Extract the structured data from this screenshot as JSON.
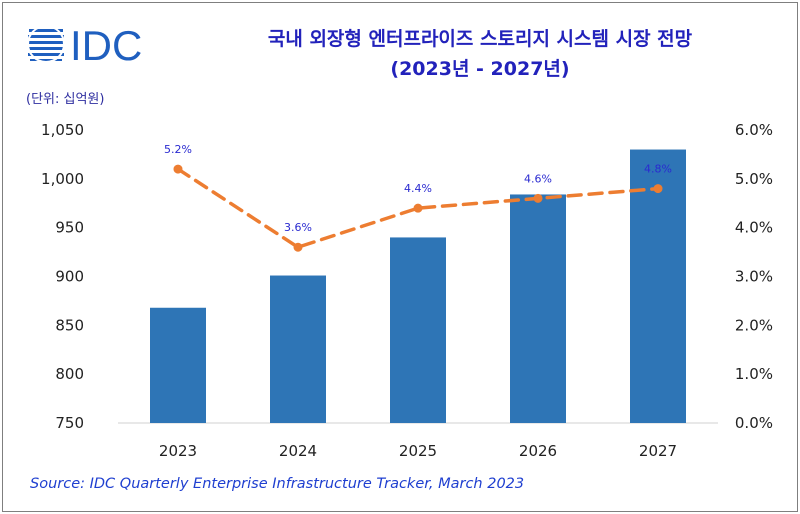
{
  "header": {
    "logo_text": "IDC",
    "title_line1": "국내 외장형 엔터프라이즈 스토리지 시스템 시장 전망",
    "title_line2": "(2023년 - 2027년)"
  },
  "unit_label": "(단위: 십억원)",
  "source": "Source: IDC Quarterly Enterprise Infrastructure Tracker, March 2023",
  "chart_data": {
    "type": "bar",
    "categories": [
      "2023",
      "2024",
      "2025",
      "2026",
      "2027"
    ],
    "series": [
      {
        "type": "bar",
        "axis": "left",
        "values": [
          868,
          901,
          940,
          984,
          1030
        ]
      },
      {
        "type": "line",
        "axis": "right",
        "style": "dashed",
        "values": [
          5.2,
          3.6,
          4.4,
          4.6,
          4.8
        ],
        "labels": [
          "5.2%",
          "3.6%",
          "4.4%",
          "4.6%",
          "4.8%"
        ]
      }
    ],
    "ylim": [
      750,
      1050
    ],
    "yticks": [
      "1,050",
      "1,000",
      "950",
      "900",
      "850",
      "800",
      "750"
    ],
    "y2lim": [
      0,
      6
    ],
    "y2ticks": [
      "6.0%",
      "5.0%",
      "4.0%",
      "3.0%",
      "2.0%",
      "1.0%",
      "0.0%"
    ],
    "legend": "none",
    "grid": false,
    "colors": {
      "bar": "#2e75b6",
      "line": "#ed7d31",
      "label": "#2a2ad0"
    }
  }
}
